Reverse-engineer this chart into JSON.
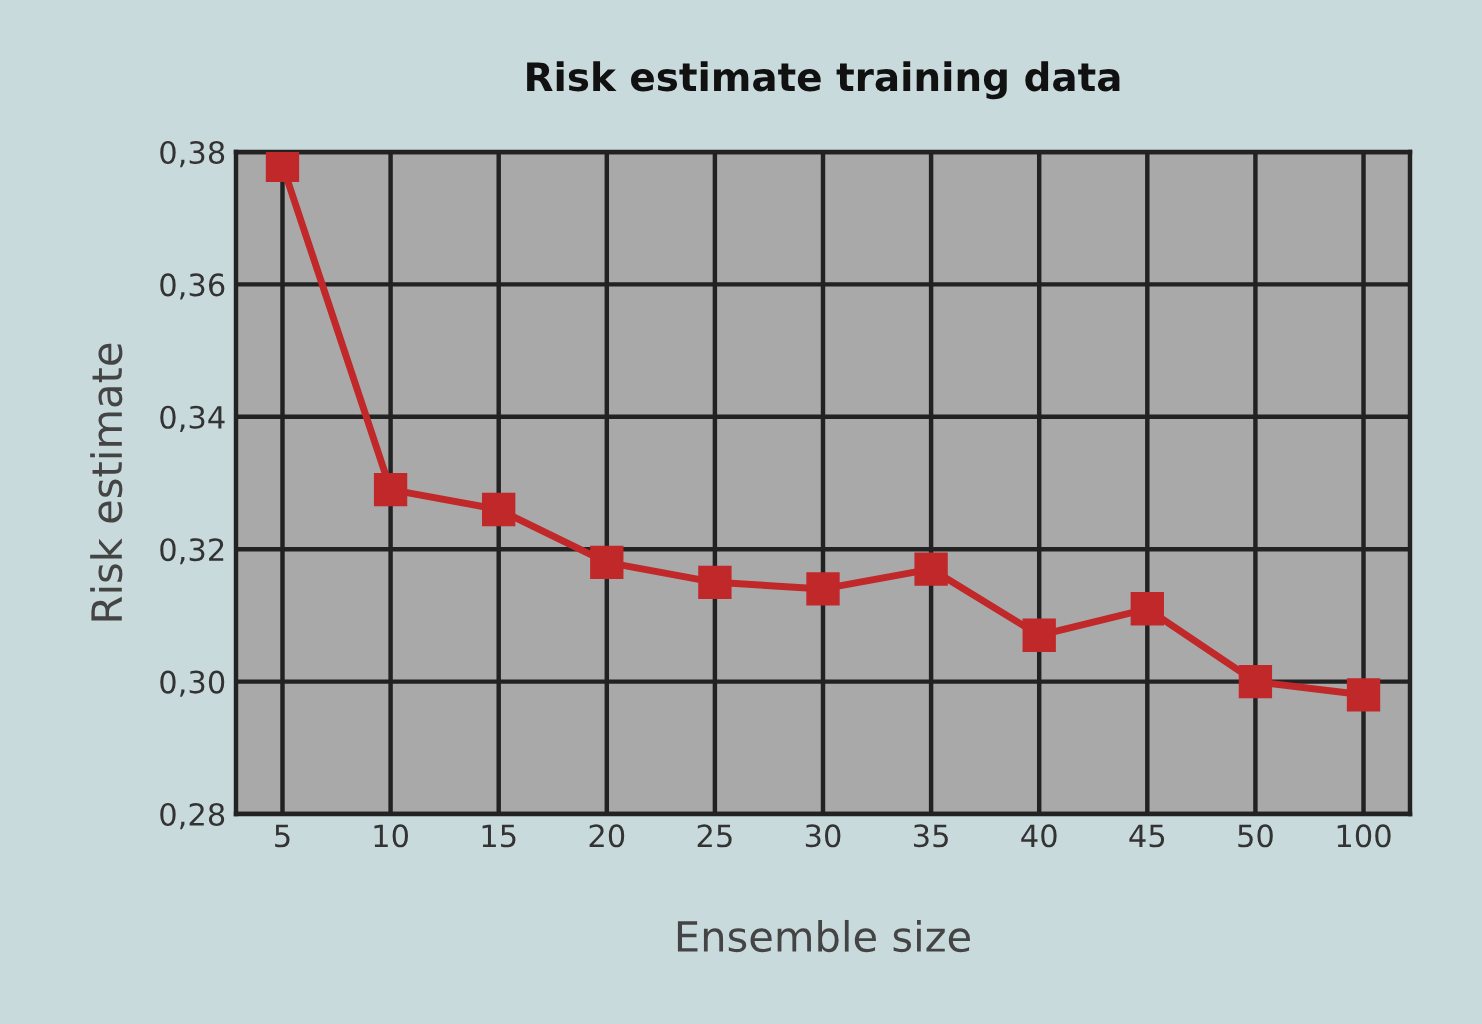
{
  "chart_data": {
    "type": "line",
    "title": "Risk estimate training data",
    "xlabel": "Ensemble size",
    "ylabel": "Risk estimate",
    "categories": [
      "5",
      "10",
      "15",
      "20",
      "25",
      "30",
      "35",
      "40",
      "45",
      "50",
      "100"
    ],
    "series": [
      {
        "color": "#c0282a",
        "values": [
          0.378,
          0.329,
          0.326,
          0.318,
          0.315,
          0.314,
          0.317,
          0.307,
          0.311,
          0.3,
          0.298
        ]
      }
    ],
    "ylim": [
      0.28,
      0.38
    ],
    "yticks": [
      {
        "value": 0.28,
        "label": "0,28"
      },
      {
        "value": 0.3,
        "label": "0,30"
      },
      {
        "value": 0.32,
        "label": "0,32"
      },
      {
        "value": 0.34,
        "label": "0,34"
      },
      {
        "value": 0.36,
        "label": "0,36"
      },
      {
        "value": 0.38,
        "label": "0,38"
      }
    ],
    "grid": true,
    "marker": "square",
    "line_style": "solid"
  }
}
